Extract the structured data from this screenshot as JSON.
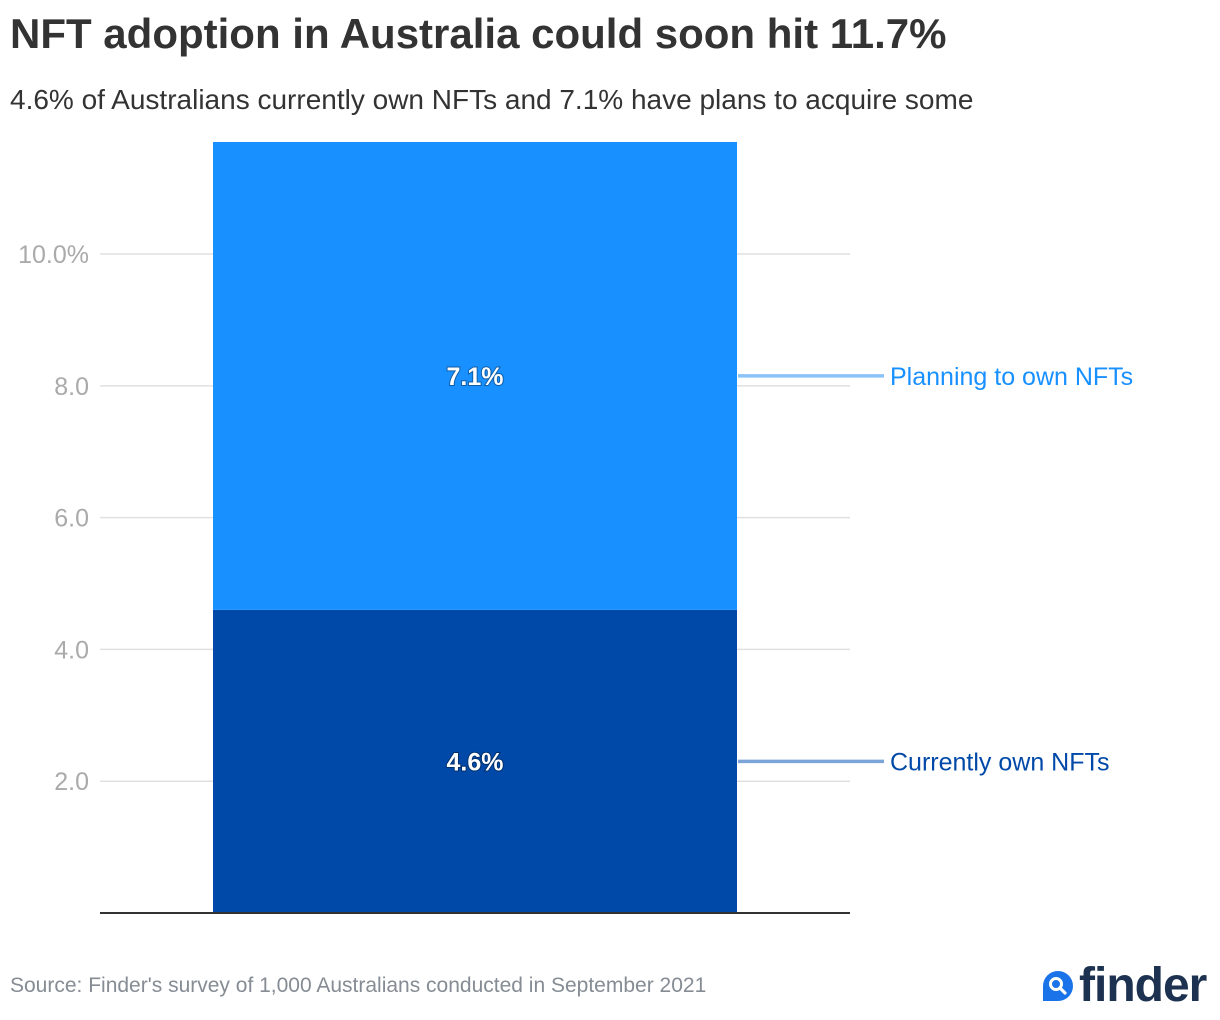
{
  "title": "NFT adoption in Australia could soon hit 11.7%",
  "subtitle": "4.6% of Australians currently own NFTs and 7.1% have plans to acquire some",
  "source": "Source: Finder's survey of 1,000 Australians conducted in September 2021",
  "logo": {
    "text": "finder",
    "icon": "search-magnifier-icon"
  },
  "colors": {
    "planning": "#1890ff",
    "current": "#0049a8",
    "planning_connector": "#8bc3f8",
    "current_connector": "#7ca4d8",
    "grid": "#e0e0e0",
    "axis": "#333333",
    "tick_text": "#aaaaaa"
  },
  "chart_data": {
    "type": "bar",
    "stacked": true,
    "categories": [
      ""
    ],
    "series": [
      {
        "name": "Currently own NFTs",
        "values": [
          4.6
        ],
        "label": "4.6%"
      },
      {
        "name": "Planning to own NFTs",
        "values": [
          7.1
        ],
        "label": "7.1%"
      }
    ],
    "yticks": [
      2.0,
      4.0,
      6.0,
      8.0,
      10.0
    ],
    "ytick_labels": [
      "2.0",
      "4.0",
      "6.0",
      "8.0",
      "10.0%"
    ],
    "ylim": [
      0,
      11.7
    ],
    "xlabel": "",
    "ylabel": "",
    "grid": true,
    "legend": "right, inline labels connected to segments"
  }
}
